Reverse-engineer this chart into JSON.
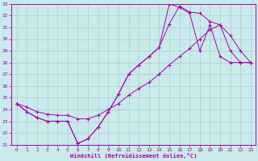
{
  "xlabel": "Windchill (Refroidissement éolien,°C)",
  "xlim": [
    -0.5,
    23.5
  ],
  "ylim": [
    21,
    33
  ],
  "xticks": [
    0,
    1,
    2,
    3,
    4,
    5,
    6,
    7,
    8,
    9,
    10,
    11,
    12,
    13,
    14,
    15,
    16,
    17,
    18,
    19,
    20,
    21,
    22,
    23
  ],
  "yticks": [
    21,
    22,
    23,
    24,
    25,
    26,
    27,
    28,
    29,
    30,
    31,
    32,
    33
  ],
  "bg_color": "#c8eaea",
  "line_color": "#aa00aa",
  "grid_color": "#aacccc",
  "lines": [
    {
      "x": [
        0,
        1,
        2,
        3,
        4,
        5,
        6,
        7,
        8,
        9,
        10,
        11,
        12,
        13,
        14,
        15,
        16,
        17,
        18,
        19,
        20,
        21,
        22,
        23
      ],
      "y": [
        24.5,
        23.8,
        23.3,
        23.0,
        23.0,
        23.0,
        21.1,
        21.5,
        22.5,
        23.8,
        25.3,
        27.0,
        27.8,
        28.5,
        29.3,
        33.0,
        32.7,
        32.2,
        29.0,
        31.2,
        28.5,
        28.0,
        28.0,
        28.0
      ]
    },
    {
      "x": [
        0,
        1,
        2,
        3,
        4,
        5,
        6,
        7,
        8,
        9,
        10,
        11,
        12,
        13,
        14,
        15,
        16,
        17,
        18,
        19,
        20,
        21,
        22,
        23
      ],
      "y": [
        24.5,
        23.8,
        23.3,
        23.0,
        23.0,
        23.0,
        21.1,
        21.5,
        22.5,
        23.8,
        25.3,
        27.0,
        27.8,
        28.5,
        29.3,
        31.3,
        32.8,
        32.3,
        32.2,
        31.5,
        31.2,
        29.0,
        28.0,
        28.0
      ]
    },
    {
      "x": [
        0,
        1,
        2,
        3,
        4,
        5,
        6,
        7,
        8,
        9,
        10,
        11,
        12,
        13,
        14,
        15,
        16,
        17,
        18,
        19,
        20,
        21,
        22,
        23
      ],
      "y": [
        24.5,
        24.2,
        23.8,
        23.6,
        23.5,
        23.5,
        23.2,
        23.2,
        23.5,
        24.0,
        24.5,
        25.2,
        25.8,
        26.3,
        27.0,
        27.8,
        28.5,
        29.2,
        30.0,
        30.8,
        31.2,
        30.3,
        29.0,
        28.0
      ]
    }
  ]
}
